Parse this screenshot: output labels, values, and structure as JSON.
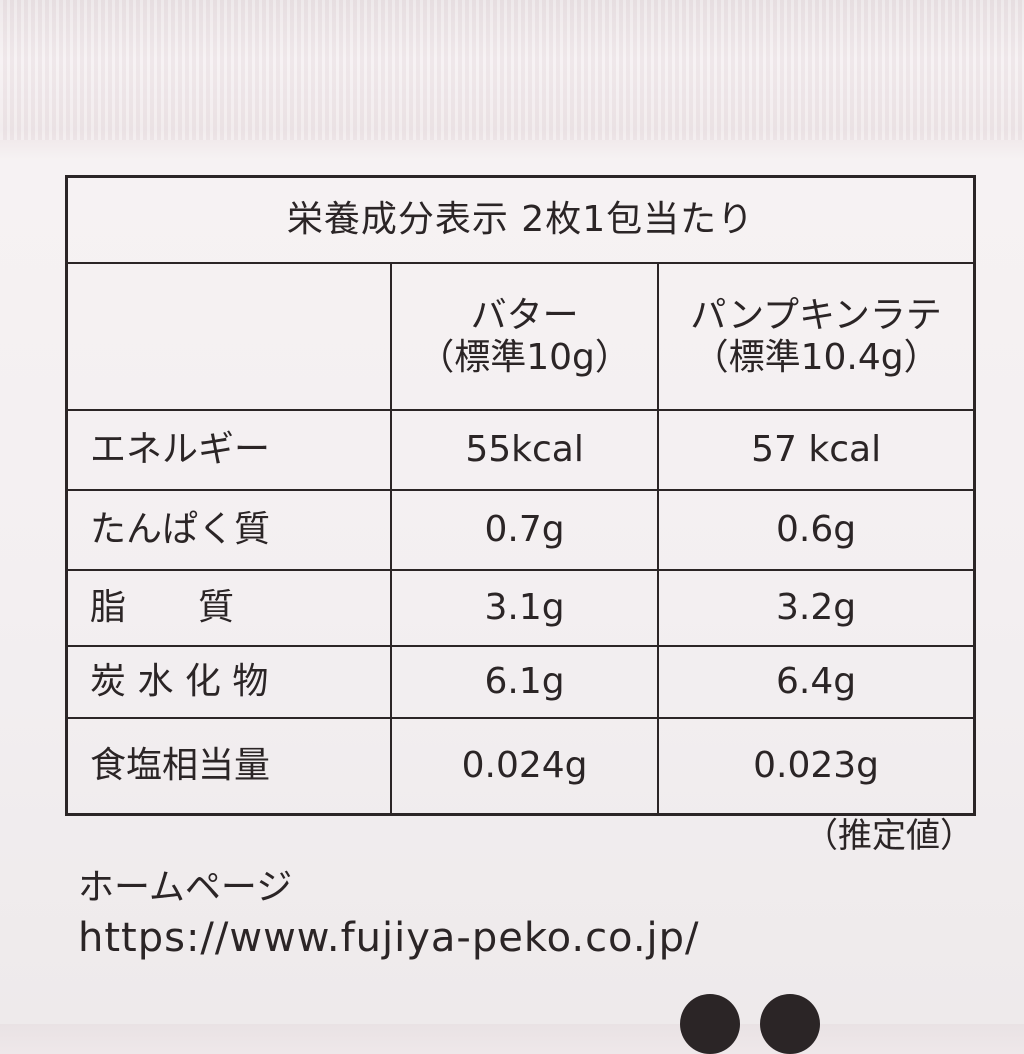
{
  "table": {
    "title": "栄養成分表示 2枚1包当たり",
    "columns": [
      {
        "name": "バター",
        "standard": "（標準10g）"
      },
      {
        "name": "パンプキンラテ",
        "standard": "（標準10.4g）"
      }
    ],
    "rows": [
      {
        "label": "エネルギー",
        "values": [
          "55kcal",
          "57 kcal"
        ]
      },
      {
        "label": "たんぱく質",
        "values": [
          "0.7g",
          "0.6g"
        ]
      },
      {
        "label": "脂　　質",
        "values": [
          "3.1g",
          "3.2g"
        ]
      },
      {
        "label": "炭 水 化 物",
        "values": [
          "6.1g",
          "6.4g"
        ]
      },
      {
        "label": "食塩相当量",
        "values": [
          "0.024g",
          "0.023g"
        ]
      }
    ],
    "note": "（推定値）"
  },
  "homepage": {
    "label": "ホームページ",
    "url": "https://www.fujiya-peko.co.jp/"
  }
}
